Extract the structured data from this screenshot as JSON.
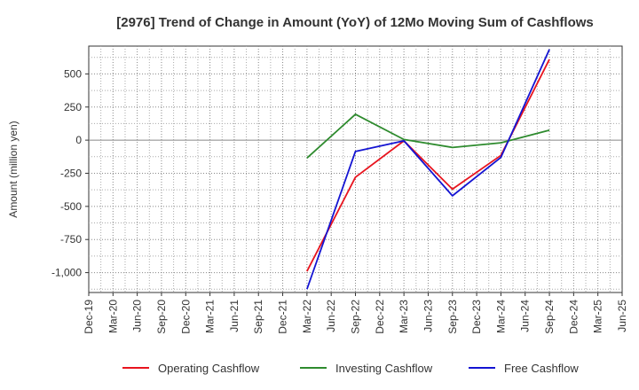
{
  "chart_data": {
    "type": "line",
    "title": "[2976]  Trend of Change in Amount (YoY) of 12Mo Moving Sum of Cashflows",
    "xlabel": "",
    "ylabel": "Amount (million yen)",
    "ylim": [
      -1150,
      710
    ],
    "yticks": [
      500,
      250,
      0,
      -250,
      -500,
      -750,
      -1000
    ],
    "ytick_labels": [
      "500",
      "250",
      "0",
      "-250",
      "-500",
      "-750",
      "-1,000"
    ],
    "grid": true,
    "legend_position": "bottom",
    "categories": [
      "Dec-19",
      "Mar-20",
      "Jun-20",
      "Sep-20",
      "Dec-20",
      "Mar-21",
      "Jun-21",
      "Sep-21",
      "Dec-21",
      "Mar-22",
      "Jun-22",
      "Sep-22",
      "Dec-22",
      "Mar-23",
      "Jun-23",
      "Sep-23",
      "Dec-23",
      "Mar-24",
      "Jun-24",
      "Sep-24",
      "Dec-24",
      "Mar-25"
    ],
    "tick_labels": [
      "Dec-19",
      "Mar-20",
      "Jun-20",
      "Sep-20",
      "Dec-20",
      "Mar-21",
      "Jun-21",
      "Sep-21",
      "Dec-21",
      "Mar-22",
      "Jun-22",
      "Sep-22",
      "Dec-22",
      "Mar-23",
      "Jun-23",
      "Sep-23",
      "Dec-23",
      "Mar-24",
      "Jun-24",
      "Sep-24",
      "Dec-24",
      "Mar-25",
      "Jun-25"
    ],
    "series": [
      {
        "name": "Operating Cashflow",
        "color": "#e8141e",
        "values": [
          null,
          null,
          null,
          null,
          null,
          null,
          null,
          null,
          null,
          -990,
          null,
          -280,
          null,
          -5,
          null,
          -370,
          null,
          -115,
          null,
          610,
          null,
          null
        ]
      },
      {
        "name": "Investing Cashflow",
        "color": "#2e8b2e",
        "values": [
          null,
          null,
          null,
          null,
          null,
          null,
          null,
          null,
          null,
          -135,
          null,
          195,
          null,
          5,
          null,
          -55,
          null,
          -20,
          null,
          75,
          null,
          null
        ]
      },
      {
        "name": "Free Cashflow",
        "color": "#1414d2",
        "values": [
          null,
          null,
          null,
          null,
          null,
          null,
          null,
          null,
          null,
          -1125,
          null,
          -85,
          null,
          -5,
          null,
          -420,
          null,
          -130,
          null,
          685,
          null,
          null
        ]
      }
    ]
  }
}
